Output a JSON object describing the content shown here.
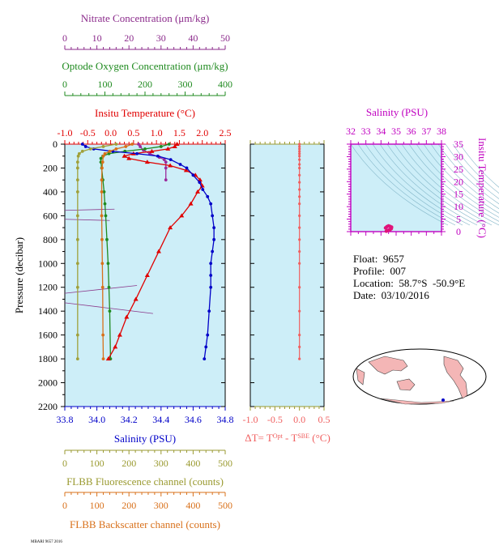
{
  "info": {
    "float": "Float:  9657",
    "profile": "Profile:  007",
    "location": "Location:  58.7°S  -50.9°E",
    "date": "Date:  03/10/2016"
  },
  "footer": "MBARI 9657 2016",
  "chart_data": [
    {
      "type": "line",
      "panel": "main-profile",
      "ylabel": "Pressure (decibar)",
      "y_ticks": [
        0,
        200,
        400,
        600,
        800,
        1000,
        1200,
        1400,
        1600,
        1800,
        2000,
        2200
      ],
      "y_range": [
        0,
        2200
      ],
      "y_inverted": true,
      "axes": {
        "nitrate": {
          "label": "Nitrate Concentration (μm/kg)",
          "range": [
            0,
            50
          ],
          "ticks": [
            "0",
            "10",
            "20",
            "30",
            "40",
            "50"
          ],
          "color": "#8b2a8b"
        },
        "oxygen": {
          "label": "Optode Oxygen Concentration (μm/kg)",
          "range": [
            0,
            400
          ],
          "ticks": [
            "0",
            "100",
            "200",
            "300",
            "400"
          ],
          "color": "#1f8a1f"
        },
        "temperature": {
          "label": "Insitu Temperature (°C)",
          "range": [
            -1.0,
            2.5
          ],
          "ticks": [
            "-1.0",
            "-0.5",
            "0.0",
            "0.5",
            "1.0",
            "1.5",
            "2.0",
            "2.5"
          ],
          "color": "#e00000"
        },
        "salinity": {
          "label": "Salinity (PSU)",
          "range": [
            33.8,
            34.8
          ],
          "ticks": [
            "33.8",
            "34.0",
            "34.2",
            "34.4",
            "34.6",
            "34.8"
          ],
          "color": "#0000c8"
        },
        "fluorescence": {
          "label": "FLBB Fluorescence channel (counts)",
          "range": [
            0,
            500
          ],
          "ticks": [
            "0",
            "100",
            "200",
            "300",
            "400",
            "500"
          ],
          "color": "#9a9a30"
        },
        "backscatter": {
          "label": "FLBB Backscatter channel (counts)",
          "range": [
            0,
            500
          ],
          "ticks": [
            "0",
            "100",
            "200",
            "300",
            "400",
            "500"
          ],
          "color": "#d8701a"
        }
      },
      "series": [
        {
          "axis": "nitrate",
          "color": "#9b2a9b",
          "marker": "circle",
          "x": [
            23,
            23.5,
            24.5,
            26.5,
            29.5,
            31,
            31.5,
            31.5,
            31.5
          ],
          "y": [
            0,
            20,
            50,
            80,
            110,
            130,
            150,
            200,
            300
          ]
        },
        {
          "axis": "oxygen",
          "color": "#1f8a1f",
          "marker": "circle",
          "x": [
            260,
            240,
            200,
            150,
            110,
            95,
            90,
            90,
            92,
            95,
            98,
            100,
            102,
            105,
            108,
            110,
            112,
            114
          ],
          "y": [
            0,
            20,
            40,
            60,
            80,
            100,
            120,
            150,
            200,
            300,
            400,
            500,
            600,
            800,
            1000,
            1200,
            1400,
            1800
          ]
        },
        {
          "axis": "temperature",
          "color": "#e00000",
          "marker": "triangle",
          "x": [
            1.45,
            1.4,
            1.25,
            0.9,
            0.5,
            0.3,
            0.4,
            0.8,
            1.3,
            1.65,
            1.85,
            1.95,
            2.0,
            1.9,
            1.75,
            1.55,
            1.3,
            1.05,
            0.8,
            0.55,
            0.35,
            0.2,
            0.1,
            -0.05
          ],
          "y": [
            0,
            20,
            40,
            60,
            80,
            100,
            120,
            150,
            180,
            220,
            260,
            300,
            350,
            400,
            500,
            600,
            700,
            900,
            1100,
            1300,
            1450,
            1600,
            1700,
            1800
          ]
        },
        {
          "axis": "salinity",
          "color": "#0000c8",
          "marker": "circle",
          "x": [
            33.91,
            33.93,
            33.98,
            34.1,
            34.25,
            34.38,
            34.46,
            34.52,
            34.56,
            34.6,
            34.64,
            34.66,
            34.69,
            34.71,
            34.72,
            34.73,
            34.73,
            34.72,
            34.71,
            34.71,
            34.71,
            34.7,
            34.69,
            34.68,
            34.67
          ],
          "y": [
            0,
            20,
            40,
            60,
            80,
            100,
            130,
            170,
            200,
            260,
            320,
            380,
            440,
            500,
            600,
            700,
            800,
            900,
            1000,
            1100,
            1200,
            1400,
            1600,
            1700,
            1800
          ]
        },
        {
          "axis": "fluorescence",
          "color": "#a0a03a",
          "marker": "circle",
          "x": [
            160,
            120,
            80,
            55,
            45,
            42,
            40,
            40,
            40,
            40,
            40,
            40,
            40,
            40,
            40,
            40
          ],
          "y": [
            0,
            20,
            40,
            60,
            80,
            100,
            150,
            200,
            300,
            400,
            600,
            800,
            1000,
            1200,
            1600,
            1800
          ]
        },
        {
          "axis": "backscatter",
          "color": "#d8701a",
          "marker": "circle",
          "x": [
            210,
            190,
            160,
            140,
            125,
            120,
            118,
            116,
            115,
            115,
            115,
            116,
            117,
            118,
            119,
            120
          ],
          "y": [
            0,
            20,
            40,
            60,
            80,
            100,
            150,
            200,
            300,
            400,
            600,
            800,
            1000,
            1200,
            1600,
            1800
          ]
        }
      ],
      "reference_lines": [
        {
          "color": "#8b3a8b",
          "x1_frac": 0.0,
          "y1": 555,
          "x2_frac": 0.31,
          "y2": 545
        },
        {
          "color": "#8b3a8b",
          "x1_frac": 0.0,
          "y1": 630,
          "x2_frac": 0.28,
          "y2": 640
        },
        {
          "color": "#8b3a8b",
          "x1_frac": 0.0,
          "y1": 1250,
          "x2_frac": 0.45,
          "y2": 1185
        },
        {
          "color": "#8b3a8b",
          "x1_frac": 0.0,
          "y1": 1330,
          "x2_frac": 0.55,
          "y2": 1420
        }
      ]
    },
    {
      "type": "scatter",
      "panel": "delta-t",
      "xlabel": "ΔT= TOpt - TSBE (°C)",
      "x_range": [
        -1.0,
        0.5
      ],
      "x_ticks": [
        "-1.0",
        "-0.5",
        "0.0",
        "0.5"
      ],
      "y_range": [
        0,
        2200
      ],
      "color": "#f06060",
      "x": [
        0.0,
        0.0,
        0.0,
        0.0,
        0.0,
        0.0,
        0.0,
        0.0,
        0.0,
        0.0,
        0.0,
        0.0,
        0.0,
        0.0,
        0.0,
        0.0,
        0.0,
        0.0,
        0.0,
        0.0,
        0.0,
        0.0,
        0.0,
        0.0
      ],
      "y": [
        0,
        20,
        40,
        60,
        80,
        100,
        130,
        170,
        200,
        260,
        320,
        380,
        440,
        500,
        600,
        700,
        800,
        900,
        1000,
        1200,
        1400,
        1600,
        1700,
        1800
      ]
    },
    {
      "type": "scatter",
      "panel": "ts-diagram",
      "title": "Salinity (PSU)",
      "ylabel": "Insitu Temperature (°C)",
      "x_range": [
        32,
        38
      ],
      "x_ticks": [
        "32",
        "33",
        "34",
        "35",
        "36",
        "37",
        "38"
      ],
      "y_range": [
        0,
        35
      ],
      "y_ticks": [
        "0",
        "5",
        "10",
        "15",
        "20",
        "25",
        "30",
        "35"
      ],
      "color": "#e0147a",
      "x": [
        34.3,
        34.4,
        34.5,
        34.6,
        34.7,
        34.68,
        34.6,
        34.5,
        34.4,
        34.35
      ],
      "y": [
        1.5,
        2.0,
        2.3,
        2.1,
        1.8,
        1.2,
        0.8,
        0.6,
        0.4,
        0.2
      ]
    }
  ]
}
